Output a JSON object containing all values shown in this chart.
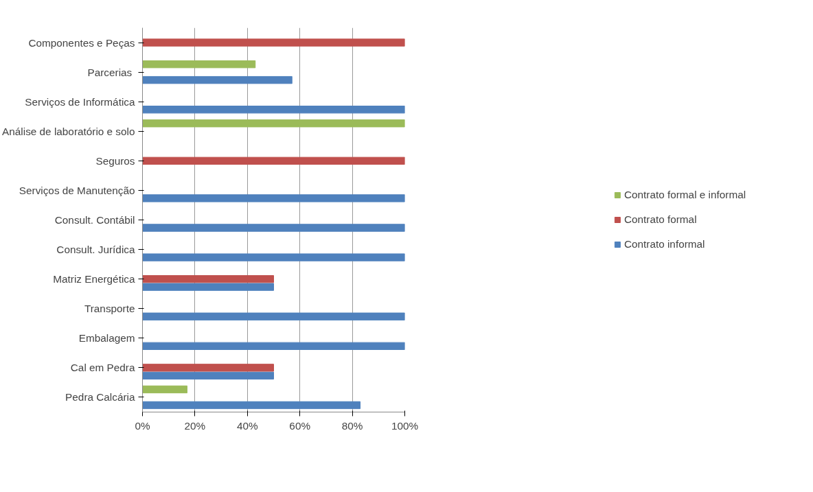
{
  "chart_data": {
    "type": "bar",
    "orientation": "horizontal",
    "categories": [
      "Componentes e Peças",
      "Parcerias ",
      "Serviços de Informática",
      "Análise de laboratório e solo",
      "Seguros",
      "Serviços de Manutenção",
      "Consult. Contábil",
      "Consult. Jurídica",
      "Matriz Energética",
      "Transporte",
      "Embalagem",
      "Cal em Pedra",
      "Pedra Calcária"
    ],
    "series": [
      {
        "name": "Contrato informal",
        "color": "#4f81bd",
        "values": [
          0,
          57,
          100,
          0,
          0,
          100,
          100,
          100,
          50,
          100,
          100,
          50,
          83
        ]
      },
      {
        "name": "Contrato formal",
        "color": "#c0504d",
        "values": [
          100,
          0,
          0,
          0,
          100,
          0,
          0,
          0,
          50,
          0,
          0,
          50,
          0
        ]
      },
      {
        "name": "Contrato formal e informal",
        "color": "#9bbb59",
        "values": [
          0,
          43,
          0,
          100,
          0,
          0,
          0,
          0,
          0,
          0,
          0,
          0,
          17
        ]
      }
    ],
    "xlim": [
      0,
      100
    ],
    "xticks": [
      {
        "value": 0,
        "label": "0%"
      },
      {
        "value": 20,
        "label": "20%"
      },
      {
        "value": 40,
        "label": "40%"
      },
      {
        "value": 60,
        "label": "60%"
      },
      {
        "value": 80,
        "label": "80%"
      },
      {
        "value": 100,
        "label": "100%"
      }
    ],
    "grid": "x",
    "legend": "right"
  }
}
